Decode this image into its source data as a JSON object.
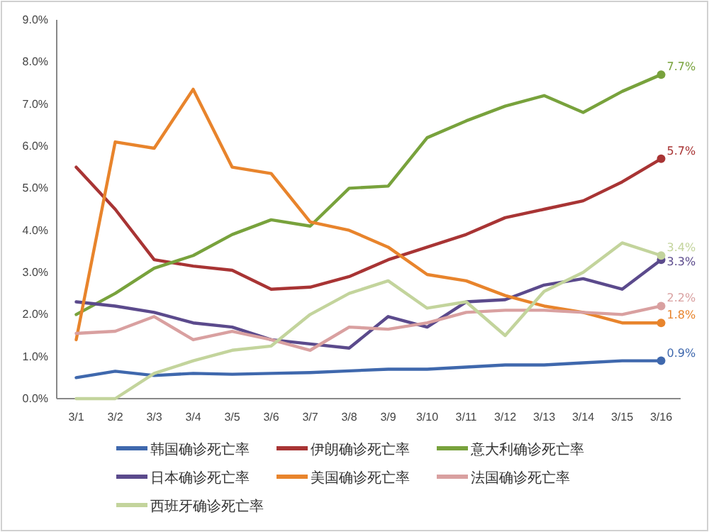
{
  "chart_data": {
    "type": "line",
    "categories": [
      "3/1",
      "3/2",
      "3/3",
      "3/4",
      "3/5",
      "3/6",
      "3/7",
      "3/8",
      "3/9",
      "3/10",
      "3/11",
      "3/12",
      "3/13",
      "3/14",
      "3/15",
      "3/16"
    ],
    "series": [
      {
        "name": "韩国确诊死亡率",
        "color": "#3f68ad",
        "values": [
          0.5,
          0.65,
          0.55,
          0.6,
          0.58,
          0.6,
          0.62,
          0.66,
          0.7,
          0.7,
          0.75,
          0.8,
          0.8,
          0.85,
          0.9,
          0.9
        ],
        "value_labels": [
          null,
          null,
          null,
          null,
          null,
          null,
          null,
          null,
          null,
          null,
          null,
          null,
          null,
          null,
          null,
          "0.9%"
        ]
      },
      {
        "name": "伊朗确诊死亡率",
        "color": "#a83434",
        "values": [
          5.5,
          4.5,
          3.3,
          3.15,
          3.05,
          2.6,
          2.65,
          2.9,
          3.3,
          3.6,
          3.9,
          4.3,
          4.5,
          4.7,
          5.15,
          5.7
        ],
        "value_labels": [
          null,
          null,
          null,
          null,
          null,
          null,
          null,
          null,
          null,
          null,
          null,
          null,
          null,
          null,
          null,
          "5.7%"
        ]
      },
      {
        "name": "意大利确诊死亡率",
        "color": "#78a23c",
        "values": [
          2.0,
          2.5,
          3.1,
          3.4,
          3.9,
          4.25,
          4.1,
          5.0,
          5.05,
          6.2,
          6.6,
          6.95,
          7.2,
          6.8,
          7.3,
          7.7
        ],
        "value_labels": [
          null,
          null,
          null,
          null,
          null,
          null,
          null,
          null,
          null,
          null,
          null,
          null,
          null,
          null,
          null,
          "7.7%"
        ]
      },
      {
        "name": "日本确诊死亡率",
        "color": "#5b4a8c",
        "values": [
          2.3,
          2.2,
          2.05,
          1.8,
          1.7,
          1.4,
          1.3,
          1.2,
          1.95,
          1.7,
          2.3,
          2.35,
          2.7,
          2.85,
          2.6,
          3.3
        ],
        "value_labels": [
          null,
          null,
          null,
          null,
          null,
          null,
          null,
          null,
          null,
          null,
          null,
          null,
          null,
          null,
          null,
          "3.3%"
        ]
      },
      {
        "name": "美国确诊死亡率",
        "color": "#e8842c",
        "values": [
          1.4,
          6.1,
          5.95,
          7.35,
          5.5,
          5.35,
          4.2,
          4.0,
          3.6,
          2.95,
          2.8,
          2.45,
          2.2,
          2.05,
          1.8,
          1.8
        ],
        "value_labels": [
          null,
          null,
          null,
          null,
          null,
          null,
          null,
          null,
          null,
          null,
          null,
          null,
          null,
          null,
          null,
          "1.8%"
        ]
      },
      {
        "name": "法国确诊死亡率",
        "color": "#d9a0a0",
        "values": [
          1.55,
          1.6,
          1.95,
          1.4,
          1.6,
          1.4,
          1.15,
          1.7,
          1.65,
          1.8,
          2.05,
          2.1,
          2.1,
          2.05,
          2.0,
          2.2
        ],
        "value_labels": [
          null,
          null,
          null,
          null,
          null,
          null,
          null,
          null,
          null,
          null,
          null,
          null,
          null,
          null,
          null,
          "2.2%"
        ]
      },
      {
        "name": "西班牙确诊死亡率",
        "color": "#c3d49c",
        "values": [
          0,
          0,
          0.6,
          0.9,
          1.15,
          1.25,
          2.0,
          2.5,
          2.8,
          2.15,
          2.3,
          1.5,
          2.55,
          3.0,
          3.7,
          3.4
        ],
        "value_labels": [
          null,
          null,
          null,
          null,
          null,
          null,
          null,
          null,
          null,
          null,
          null,
          null,
          null,
          null,
          null,
          "3.4%"
        ]
      }
    ],
    "ylim": [
      0,
      9
    ],
    "yticks": [
      {
        "value": 0,
        "label": "0.0%"
      },
      {
        "value": 1,
        "label": "1.0%"
      },
      {
        "value": 2,
        "label": "2.0%"
      },
      {
        "value": 3,
        "label": "3.0%"
      },
      {
        "value": 4,
        "label": "4.0%"
      },
      {
        "value": 5,
        "label": "5.0%"
      },
      {
        "value": 6,
        "label": "6.0%"
      },
      {
        "value": 7,
        "label": "7.0%"
      },
      {
        "value": 8,
        "label": "8.0%"
      },
      {
        "value": 9,
        "label": "9.0%"
      }
    ],
    "grid": false,
    "legend": "bottom"
  }
}
